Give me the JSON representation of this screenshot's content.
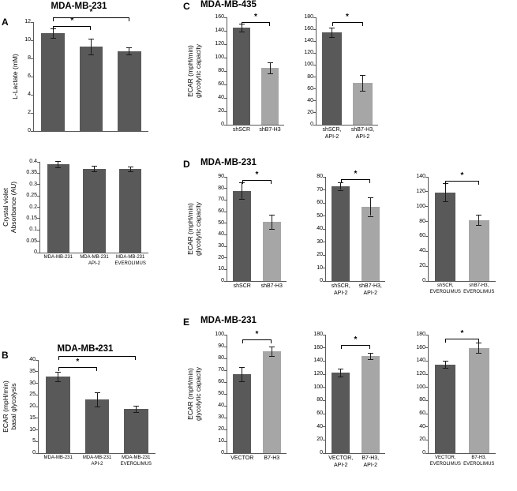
{
  "panels": {
    "A": {
      "letter": "A",
      "title": "MDA-MB-231"
    },
    "B": {
      "letter": "B",
      "title": "MDA-MB-231"
    },
    "C": {
      "letter": "C",
      "title": "MDA-MB-435"
    },
    "D": {
      "letter": "D",
      "title": "MDA-MB-231"
    },
    "E": {
      "letter": "E",
      "title": "MDA-MB-231"
    }
  },
  "colors": {
    "dark_bar": "#595959",
    "light_bar": "#a6a6a6",
    "axis": "#595959"
  },
  "chart_data": [
    {
      "id": "A-lactate",
      "type": "bar",
      "ylabel": "L-Lactate (mM)",
      "ylim": [
        0,
        12
      ],
      "ystep": 2,
      "categories": [
        "MDA-MB-231",
        "MDA-MB-231 API-2",
        "MDA-MB-231 EVEROLIMUS"
      ],
      "show_categories": false,
      "values": [
        10.8,
        9.3,
        8.8
      ],
      "errors": [
        0.5,
        0.9,
        0.4
      ],
      "colors": [
        "dark",
        "dark",
        "dark"
      ],
      "significance": [
        {
          "a": 0,
          "b": 1,
          "y": 11.6,
          "label": "*"
        },
        {
          "a": 0,
          "b": 2,
          "y": 12.55,
          "label": "*"
        }
      ]
    },
    {
      "id": "A-crystal-violet",
      "type": "bar",
      "ylabel": "Crystal violet\nAbsorbance (AU)",
      "ylim": [
        0,
        0.4
      ],
      "ystep": 0.05,
      "categories": [
        "MDA-MB-231",
        "MDA-MB-231\nAPI-2",
        "MDA-MB-231\nEVEROLIMUS"
      ],
      "values": [
        0.39,
        0.37,
        0.37
      ],
      "errors": [
        0.015,
        0.012,
        0.01
      ],
      "colors": [
        "dark",
        "dark",
        "dark"
      ],
      "significance": []
    },
    {
      "id": "B-basal-glycolysis",
      "type": "bar",
      "ylabel": "ECAR (mpH/min)\nbasal glycolysis",
      "ylim": [
        0,
        40
      ],
      "ystep": 5,
      "categories": [
        "MDA-MB-231",
        "MDA-MB-231\nAPI-2",
        "MDA-MB-231\nEVEROLIMUS"
      ],
      "values": [
        33,
        23,
        19
      ],
      "errors": [
        2,
        3,
        1.5
      ],
      "colors": [
        "dark",
        "dark",
        "dark"
      ],
      "significance": [
        {
          "a": 0,
          "b": 1,
          "y": 37,
          "label": "*"
        },
        {
          "a": 0,
          "b": 2,
          "y": 41.8,
          "label": "*"
        }
      ]
    },
    {
      "id": "C-shSCR-vs-shB7H3",
      "type": "bar",
      "ylabel": "ECAR (mpH/min)\nglycolytic capacity",
      "ylim": [
        0,
        160
      ],
      "ystep": 20,
      "categories": [
        "shSCR",
        "shB7-H3"
      ],
      "values": [
        145,
        85
      ],
      "errors": [
        6,
        8
      ],
      "colors": [
        "dark",
        "light"
      ],
      "significance": [
        {
          "a": 0,
          "b": 1,
          "y": 153,
          "label": "*"
        }
      ]
    },
    {
      "id": "C-API2",
      "type": "bar",
      "ylabel": "ECAR (mpH/min)\nglycolytic capacity",
      "ylim": [
        0,
        180
      ],
      "ystep": 20,
      "categories": [
        "shSCR,\nAPI-2",
        "shB7-H3,\nAPI-2"
      ],
      "values": [
        155,
        70
      ],
      "errors": [
        8,
        13
      ],
      "colors": [
        "dark",
        "light"
      ],
      "significance": [
        {
          "a": 0,
          "b": 1,
          "y": 172,
          "label": "*"
        }
      ]
    },
    {
      "id": "D-shSCR-vs-shB7H3",
      "type": "bar",
      "ylabel": "ECAR (mpH/min)\nglycolytic capacity",
      "ylim": [
        0,
        90
      ],
      "ystep": 10,
      "categories": [
        "shSCR",
        "shB7-H3"
      ],
      "values": [
        78,
        51
      ],
      "errors": [
        7,
        6
      ],
      "colors": [
        "dark",
        "light"
      ],
      "significance": [
        {
          "a": 0,
          "b": 1,
          "y": 87,
          "label": "*"
        }
      ]
    },
    {
      "id": "D-API2",
      "type": "bar",
      "ylabel": "ECAR (mpH/min)\nglycolytic capacity",
      "ylim": [
        0,
        80
      ],
      "ystep": 10,
      "categories": [
        "shSCR,\nAPI-2",
        "shB7-H3,\nAPI-2"
      ],
      "values": [
        73,
        57
      ],
      "errors": [
        3,
        7
      ],
      "colors": [
        "dark",
        "light"
      ],
      "significance": [
        {
          "a": 0,
          "b": 1,
          "y": 78,
          "label": "*"
        }
      ]
    },
    {
      "id": "D-EVEROLIMUS",
      "type": "bar",
      "ylabel": "ECAR (mpH/min)\nglycolytic capacity",
      "ylim": [
        0,
        140
      ],
      "ystep": 20,
      "categories": [
        "shSCR,\nEVEROLIMUS",
        "shB7-H3,\nEVEROLIMUS"
      ],
      "values": [
        119,
        82
      ],
      "errors": [
        12,
        7
      ],
      "colors": [
        "dark",
        "light"
      ],
      "significance": [
        {
          "a": 0,
          "b": 1,
          "y": 135,
          "label": "*"
        }
      ]
    },
    {
      "id": "E-vector-vs-B7H3",
      "type": "bar",
      "ylabel": "ECAR (mpH/min)\nglycolytic capacity",
      "ylim": [
        0,
        100
      ],
      "ystep": 10,
      "categories": [
        "VECTOR",
        "B7-H3"
      ],
      "values": [
        67,
        86
      ],
      "errors": [
        6,
        4
      ],
      "colors": [
        "dark",
        "light"
      ],
      "significance": [
        {
          "a": 0,
          "b": 1,
          "y": 96,
          "label": "*"
        }
      ]
    },
    {
      "id": "E-API2",
      "type": "bar",
      "ylabel": "ECAR (mpH/min)\nglycolytic capacity",
      "ylim": [
        0,
        180
      ],
      "ystep": 20,
      "categories": [
        "VECTOR,\nAPI-2",
        "B7-H3,\nAPI-2"
      ],
      "values": [
        123,
        148
      ],
      "errors": [
        6,
        5
      ],
      "colors": [
        "dark",
        "light"
      ],
      "significance": [
        {
          "a": 0,
          "b": 1,
          "y": 164,
          "label": "*"
        }
      ]
    },
    {
      "id": "E-EVEROLIMUS",
      "type": "bar",
      "ylabel": "ECAR (mpH/min)\nglycolytic capacity",
      "ylim": [
        0,
        180
      ],
      "ystep": 20,
      "categories": [
        "VECTOR,\nEVEROLIMUS",
        "B7-H3,\nEVEROLIMUS"
      ],
      "values": [
        135,
        160
      ],
      "errors": [
        5,
        8
      ],
      "colors": [
        "dark",
        "light"
      ],
      "significance": [
        {
          "a": 0,
          "b": 1,
          "y": 174,
          "label": "*"
        }
      ]
    }
  ]
}
